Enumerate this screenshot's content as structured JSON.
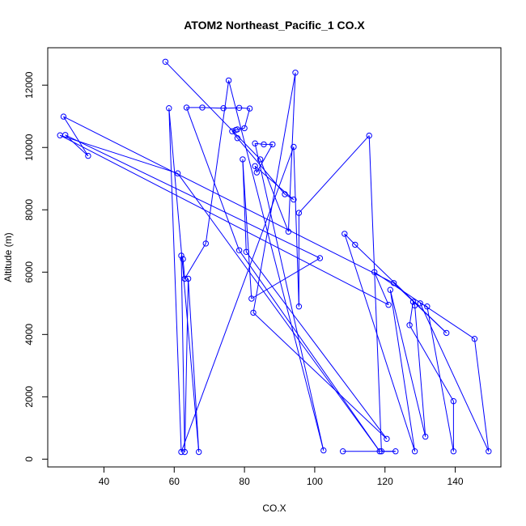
{
  "chart_data": {
    "type": "line",
    "title": "ATOM2 Northeast_Pacific_1 CO.X",
    "xlabel": "CO.X",
    "ylabel": "Altitude (m)",
    "xlim": [
      24,
      153
    ],
    "ylim": [
      -250,
      13200
    ],
    "x_ticks": [
      40,
      60,
      80,
      100,
      120,
      140
    ],
    "y_ticks": [
      0,
      2000,
      4000,
      6000,
      8000,
      10000,
      12000
    ],
    "series_color": "#0000ff",
    "markers": "open-circle",
    "series": [
      {
        "points": [
          [
            57.5,
            12750
          ],
          [
            84.5,
            9620
          ],
          [
            92.5,
            7300
          ],
          [
            94.5,
            12400
          ],
          [
            82.5,
            4700
          ],
          [
            120.5,
            650
          ],
          [
            80.5,
            6650
          ],
          [
            79.5,
            9620
          ],
          [
            82.0,
            5150
          ],
          [
            101.5,
            6450
          ],
          [
            29.0,
            10400
          ],
          [
            35.5,
            9730
          ],
          [
            28.5,
            10990
          ],
          [
            122.5,
            5650
          ],
          [
            137.5,
            4050
          ],
          [
            111.5,
            6880
          ],
          [
            108.5,
            7230
          ],
          [
            128.5,
            250
          ],
          [
            121.5,
            5430
          ],
          [
            131.5,
            720
          ],
          [
            128.5,
            4930
          ],
          [
            128.0,
            5050
          ],
          [
            127.0,
            4300
          ],
          [
            139.5,
            1860
          ],
          [
            139.5,
            250
          ],
          [
            132.0,
            4900
          ],
          [
            130.0,
            5000
          ],
          [
            149.5,
            250
          ],
          [
            145.5,
            3860
          ],
          [
            117.0,
            6000
          ],
          [
            121.0,
            4950
          ],
          [
            27.5,
            10390
          ],
          [
            61.0,
            9170
          ],
          [
            118.5,
            250
          ],
          [
            78.5,
            6700
          ],
          [
            63.5,
            11280
          ],
          [
            68.0,
            11280
          ],
          [
            74.0,
            11260
          ],
          [
            78.5,
            11270
          ],
          [
            81.5,
            11250
          ],
          [
            80.0,
            10620
          ],
          [
            78.0,
            10580
          ],
          [
            77.5,
            10560
          ],
          [
            76.5,
            10520
          ],
          [
            78.0,
            10300
          ],
          [
            91.5,
            8500
          ],
          [
            94.0,
            8330
          ],
          [
            83.0,
            9400
          ],
          [
            83.5,
            9200
          ],
          [
            88.0,
            10100
          ],
          [
            85.5,
            10100
          ],
          [
            83.0,
            10130
          ],
          [
            102.5,
            280
          ],
          [
            75.5,
            12150
          ],
          [
            69.0,
            6920
          ],
          [
            63.0,
            5790
          ],
          [
            62.5,
            6420
          ],
          [
            62.0,
            6530
          ],
          [
            63.0,
            230
          ],
          [
            64.0,
            5790
          ],
          [
            67.0,
            230
          ],
          [
            58.5,
            11260
          ],
          [
            62.0,
            230
          ],
          [
            94.0,
            10020
          ],
          [
            95.5,
            4900
          ],
          [
            95.5,
            7900
          ],
          [
            115.5,
            10380
          ],
          [
            119.0,
            250
          ],
          [
            123.0,
            250
          ],
          [
            108.0,
            250
          ]
        ]
      }
    ]
  }
}
